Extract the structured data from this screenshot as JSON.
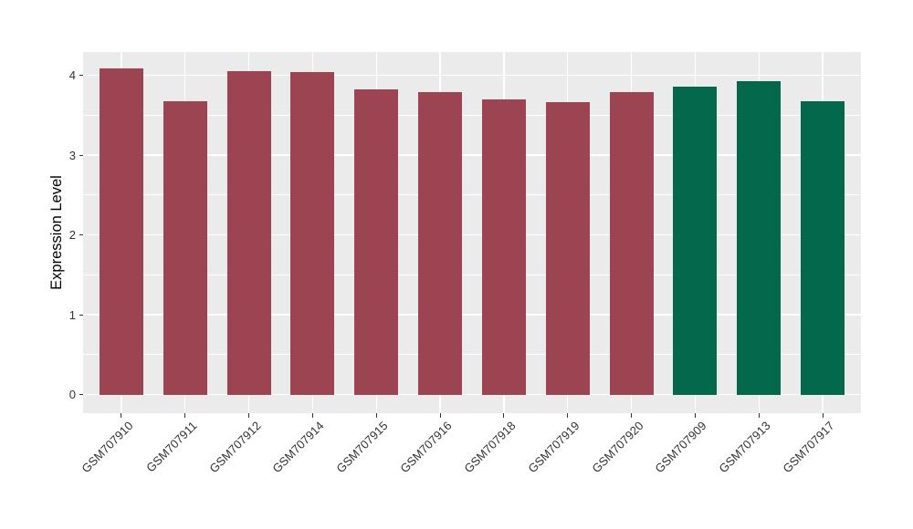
{
  "chart_data": {
    "type": "bar",
    "title": "",
    "xlabel": "",
    "ylabel": "Expression Level",
    "categories": [
      "GSM707910",
      "GSM707911",
      "GSM707912",
      "GSM707914",
      "GSM707915",
      "GSM707916",
      "GSM707918",
      "GSM707919",
      "GSM707920",
      "GSM707909",
      "GSM707913",
      "GSM707917"
    ],
    "values": [
      4.09,
      3.68,
      4.05,
      4.04,
      3.82,
      3.79,
      3.7,
      3.66,
      3.79,
      3.86,
      3.93,
      3.68
    ],
    "bar_colors": [
      "#9D4452",
      "#9D4452",
      "#9D4452",
      "#9D4452",
      "#9D4452",
      "#9D4452",
      "#9D4452",
      "#9D4452",
      "#9D4452",
      "#03684C",
      "#03684C",
      "#03684C"
    ],
    "groups": [
      "maroon",
      "maroon",
      "maroon",
      "maroon",
      "maroon",
      "maroon",
      "maroon",
      "maroon",
      "maroon",
      "green",
      "green",
      "green"
    ],
    "y_ticks": [
      0,
      1,
      2,
      3,
      4
    ],
    "y_minor_ticks": [
      0.5,
      1.5,
      2.5,
      3.5
    ],
    "ylim": [
      0,
      4.29
    ],
    "grid": true,
    "legend": "none",
    "x_label_rotation": 45,
    "colors": {
      "panel_bg": "#EBEBEB",
      "grid": "#FFFFFF",
      "axis_text": "#333333",
      "axis_title": "#000000",
      "tick_mark": "#333333",
      "group_maroon": "#9D4452",
      "group_green": "#03684C"
    }
  }
}
